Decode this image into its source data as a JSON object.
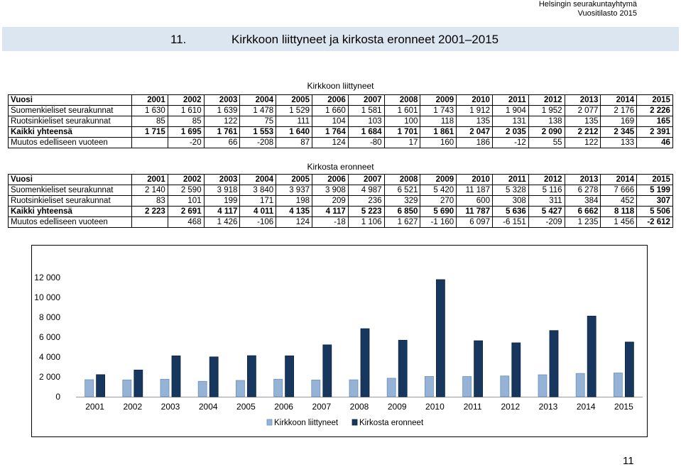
{
  "header": {
    "org": "Helsingin seurakuntayhtymä",
    "subtitle": "Vuositilasto 2015"
  },
  "page_title": {
    "number": "11.",
    "text": "Kirkkoon liittyneet ja kirkosta eronneet 2001–2015"
  },
  "joined": {
    "title": "Kirkkoon liittyneet",
    "rows": [
      {
        "label": "Vuosi",
        "cells": [
          "2001",
          "2002",
          "2003",
          "2004",
          "2005",
          "2006",
          "2007",
          "2008",
          "2009",
          "2010",
          "2011",
          "2012",
          "2013",
          "2014",
          "2015"
        ]
      },
      {
        "label": "Suomenkieliset seurakunnat",
        "cells": [
          "1 630",
          "1 610",
          "1 639",
          "1 478",
          "1 529",
          "1 660",
          "1 581",
          "1 601",
          "1 743",
          "1 912",
          "1 904",
          "1 952",
          "2 077",
          "2 176",
          "2 226"
        ]
      },
      {
        "label": "Ruotsinkieliset seurakunnat",
        "cells": [
          "85",
          "85",
          "122",
          "75",
          "111",
          "104",
          "103",
          "100",
          "118",
          "135",
          "131",
          "138",
          "135",
          "169",
          "165"
        ]
      },
      {
        "label": "Kaikki yhteensä",
        "cells": [
          "1 715",
          "1 695",
          "1 761",
          "1 553",
          "1 640",
          "1 764",
          "1 684",
          "1 701",
          "1 861",
          "2 047",
          "2 035",
          "2 090",
          "2 212",
          "2 345",
          "2 391"
        ]
      },
      {
        "label": "Muutos edelliseen vuoteen",
        "cells": [
          "",
          "-20",
          "66",
          "-208",
          "87",
          "124",
          "-80",
          "17",
          "160",
          "186",
          "-12",
          "55",
          "122",
          "133",
          "46"
        ]
      }
    ]
  },
  "left": {
    "title": "Kirkosta eronneet",
    "rows": [
      {
        "label": "Vuosi",
        "cells": [
          "2001",
          "2002",
          "2003",
          "2004",
          "2005",
          "2006",
          "2007",
          "2008",
          "2009",
          "2010",
          "2011",
          "2012",
          "2013",
          "2014",
          "2015"
        ]
      },
      {
        "label": "Suomenkieliset seurakunnat",
        "cells": [
          "2 140",
          "2 590",
          "3 918",
          "3 840",
          "3 937",
          "3 908",
          "4 987",
          "6 521",
          "5 420",
          "11 187",
          "5 328",
          "5 116",
          "6 278",
          "7 666",
          "5 199"
        ]
      },
      {
        "label": "Ruotsinkieliset seurakunnat",
        "cells": [
          "83",
          "101",
          "199",
          "171",
          "198",
          "209",
          "236",
          "329",
          "270",
          "600",
          "308",
          "311",
          "384",
          "452",
          "307"
        ]
      },
      {
        "label": "Kaikki yhteensä",
        "cells": [
          "2 223",
          "2 691",
          "4 117",
          "4 011",
          "4 135",
          "4 117",
          "5 223",
          "6 850",
          "5 690",
          "11 787",
          "5 636",
          "5 427",
          "6 662",
          "8 118",
          "5 506"
        ]
      },
      {
        "label": "Muutos edelliseen vuoteen",
        "cells": [
          "",
          "468",
          "1 426",
          "-106",
          "124",
          "-18",
          "1 106",
          "1 627",
          "-1 160",
          "6 097",
          "-6 151",
          "-209",
          "1 235",
          "1 456",
          "-2 612"
        ]
      }
    ]
  },
  "chart_data": {
    "type": "bar",
    "categories": [
      "2001",
      "2002",
      "2003",
      "2004",
      "2005",
      "2006",
      "2007",
      "2008",
      "2009",
      "2010",
      "2011",
      "2012",
      "2013",
      "2014",
      "2015"
    ],
    "series": [
      {
        "name": "Kirkkoon liittyneet",
        "color": "#95b3d7",
        "values": [
          1715,
          1695,
          1761,
          1553,
          1640,
          1764,
          1684,
          1701,
          1861,
          2047,
          2035,
          2090,
          2212,
          2345,
          2391
        ]
      },
      {
        "name": "Kirkosta eronneet",
        "color": "#17375e",
        "values": [
          2223,
          2691,
          4117,
          4011,
          4135,
          4117,
          5223,
          6850,
          5690,
          11787,
          5636,
          5427,
          6662,
          8118,
          5506
        ]
      }
    ],
    "ylim": [
      0,
      12000
    ],
    "yticks": [
      0,
      2000,
      4000,
      6000,
      8000,
      10000,
      12000
    ],
    "ytick_labels": [
      "0",
      "2 000",
      "4 000",
      "6 000",
      "8 000",
      "10 000",
      "12 000"
    ],
    "legend_position": "bottom"
  },
  "page_number": "11"
}
